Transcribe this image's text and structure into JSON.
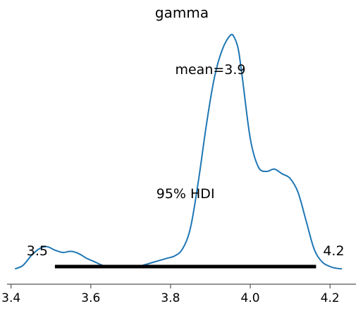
{
  "colors": {
    "density_line": "#1f77b4",
    "hdi_bar": "#000000",
    "axis": "#555555",
    "background": "#ffffff"
  },
  "chart_data": {
    "type": "line",
    "title": "gamma",
    "xlabel": "",
    "ylabel": "",
    "xlim": [
      3.39,
      4.265
    ],
    "ylim": [
      0,
      1.0
    ],
    "xticks": [
      3.4,
      3.6,
      3.8,
      4.0,
      4.2
    ],
    "xtick_labels": [
      "3.4",
      "3.6",
      "3.8",
      "4.0",
      "4.2"
    ],
    "yaxis_visible": false,
    "grid": false,
    "legend": "none",
    "series": [
      {
        "x": [
          3.41,
          3.43,
          3.45,
          3.47,
          3.49,
          3.51,
          3.53,
          3.55,
          3.57,
          3.59,
          3.61,
          3.63,
          3.65,
          3.67,
          3.69,
          3.71,
          3.73,
          3.75,
          3.77,
          3.79,
          3.81,
          3.83,
          3.85,
          3.87,
          3.89,
          3.91,
          3.93,
          3.95,
          3.96,
          3.97,
          3.98,
          4.0,
          4.02,
          4.04,
          4.06,
          4.08,
          4.1,
          4.12,
          4.14,
          4.16,
          4.18,
          4.2,
          4.215,
          4.23
        ],
        "values": [
          0.005,
          0.02,
          0.06,
          0.09,
          0.1,
          0.085,
          0.075,
          0.08,
          0.07,
          0.05,
          0.035,
          0.02,
          0.015,
          0.018,
          0.015,
          0.012,
          0.02,
          0.03,
          0.04,
          0.05,
          0.06,
          0.09,
          0.18,
          0.38,
          0.62,
          0.82,
          0.94,
          1.0,
          0.99,
          0.94,
          0.82,
          0.56,
          0.44,
          0.42,
          0.43,
          0.41,
          0.39,
          0.33,
          0.21,
          0.09,
          0.035,
          0.015,
          0.008,
          0.005
        ]
      }
    ],
    "annotations": {
      "mean_label": "mean=3.9",
      "hdi_label": "95% HDI",
      "hdi_low_label": "3.5",
      "hdi_high_label": "4.2"
    },
    "hdi": [
      3.51,
      4.165
    ],
    "mean": 3.9
  }
}
